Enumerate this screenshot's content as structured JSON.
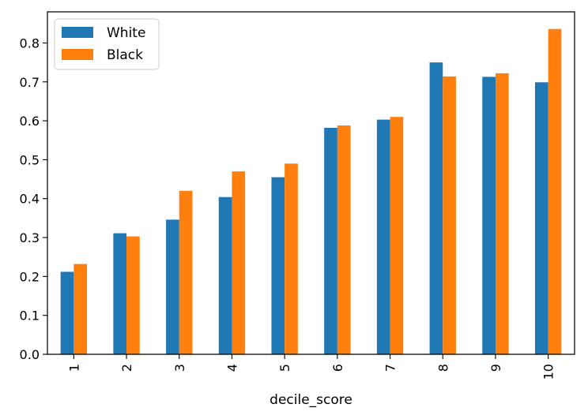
{
  "chart_data": {
    "type": "bar",
    "xlabel": "decile_score",
    "ylabel": "",
    "categories": [
      "1",
      "2",
      "3",
      "4",
      "5",
      "6",
      "7",
      "8",
      "9",
      "10"
    ],
    "series": [
      {
        "name": "White",
        "color": "#1f77b4",
        "values": [
          0.212,
          0.311,
          0.346,
          0.404,
          0.455,
          0.582,
          0.603,
          0.75,
          0.713,
          0.699
        ]
      },
      {
        "name": "Black",
        "color": "#ff7f0e",
        "values": [
          0.232,
          0.303,
          0.42,
          0.47,
          0.49,
          0.588,
          0.61,
          0.714,
          0.722,
          0.836
        ]
      }
    ],
    "ylim": [
      0,
      0.88
    ],
    "yticks": [
      "0.0",
      "0.1",
      "0.2",
      "0.3",
      "0.4",
      "0.5",
      "0.6",
      "0.7",
      "0.8"
    ],
    "grid": false,
    "legend_position": "top-left"
  }
}
